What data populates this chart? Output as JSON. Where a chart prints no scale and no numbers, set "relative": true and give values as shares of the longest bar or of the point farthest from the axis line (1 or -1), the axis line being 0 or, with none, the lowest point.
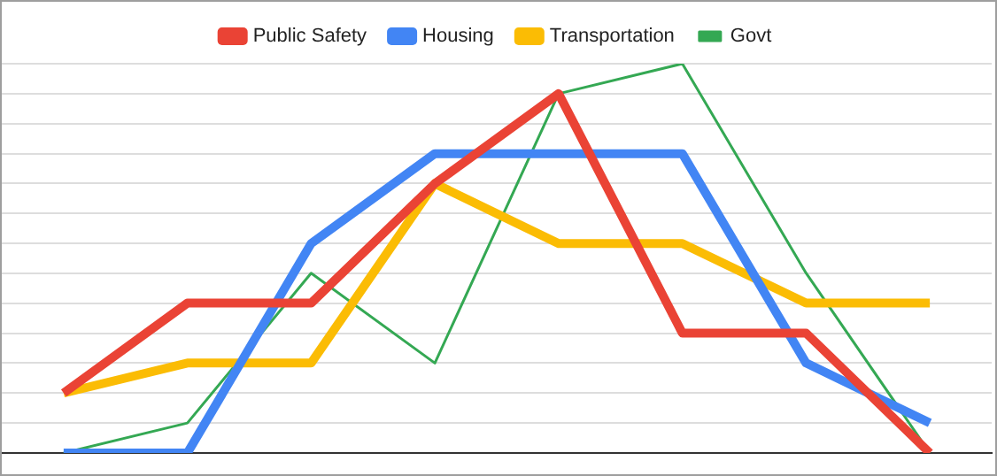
{
  "chart_data": {
    "type": "line",
    "relative": true,
    "categories": [
      null,
      null,
      null,
      null,
      null,
      null,
      null,
      null
    ],
    "grid": "y",
    "legend": "top",
    "marker": "none",
    "line_style": "solid",
    "series": [
      {
        "name": "Public Safety",
        "color": "#ea4335",
        "values": [
          0.154,
          0.385,
          0.385,
          0.692,
          0.923,
          0.308,
          0.308,
          0
        ]
      },
      {
        "name": "Housing",
        "color": "#4285f4",
        "values": [
          0,
          0,
          0.538,
          0.769,
          0.769,
          0.769,
          0.231,
          0.077
        ]
      },
      {
        "name": "Transportation",
        "color": "#fbbc04",
        "values": [
          0.154,
          0.231,
          0.231,
          0.692,
          0.538,
          0.538,
          0.385,
          0.385
        ]
      },
      {
        "name": "Govt",
        "color": "#34a853",
        "values": [
          0,
          0.077,
          0.462,
          0.231,
          0.923,
          1,
          0.462,
          0
        ]
      }
    ]
  }
}
